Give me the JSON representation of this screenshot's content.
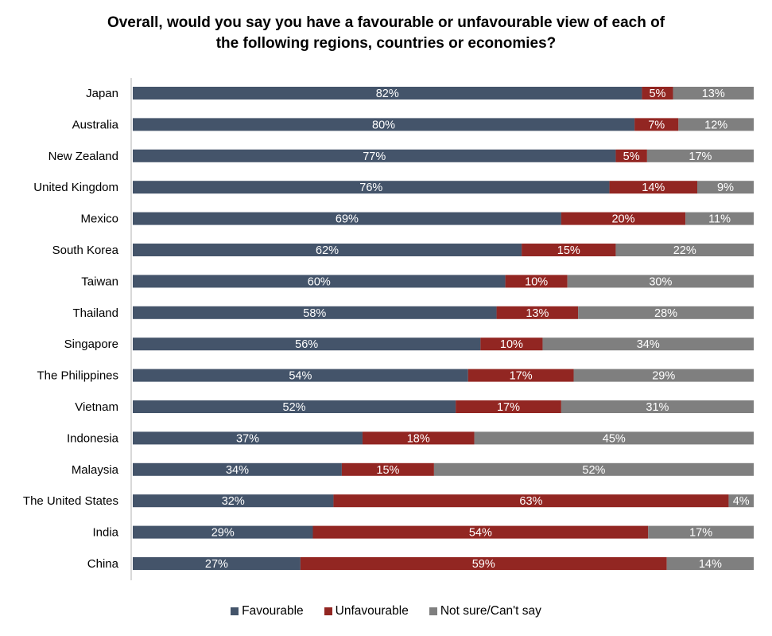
{
  "chart_data": {
    "type": "bar",
    "orientation": "horizontal",
    "stacked": "100%",
    "title_lines": [
      "Overall, would you say you have a favourable or unfavourable view of each of",
      "the following regions, countries or economies?"
    ],
    "title": "Overall, would you say you have a favourable or unfavourable view of each of the following regions, countries or economies?",
    "xlabel": "",
    "ylabel": "",
    "xlim": [
      0,
      100
    ],
    "grid": false,
    "legend_position": "bottom",
    "categories": [
      "Japan",
      "Australia",
      "New Zealand",
      "United Kingdom",
      "Mexico",
      "South Korea",
      "Taiwan",
      "Thailand",
      "Singapore",
      "The Philippines",
      "Vietnam",
      "Indonesia",
      "Malaysia",
      "The United States",
      "India",
      "China"
    ],
    "series": [
      {
        "name": "Favourable",
        "color": "#44546A",
        "values": [
          82,
          80,
          77,
          76,
          69,
          62,
          60,
          58,
          56,
          54,
          52,
          37,
          34,
          32,
          29,
          27
        ]
      },
      {
        "name": "Unfavourable",
        "color": "#922622",
        "values": [
          5,
          7,
          5,
          14,
          20,
          15,
          10,
          13,
          10,
          17,
          17,
          18,
          15,
          63,
          54,
          59
        ]
      },
      {
        "name": "Not sure/Can't say",
        "color": "#7F7F7F",
        "values": [
          13,
          12,
          17,
          9,
          11,
          22,
          30,
          28,
          34,
          29,
          31,
          45,
          52,
          4,
          17,
          14
        ]
      }
    ],
    "value_suffix": "%"
  },
  "legend": {
    "items": [
      {
        "label": "Favourable",
        "color": "#44546A"
      },
      {
        "label": "Unfavourable",
        "color": "#922622"
      },
      {
        "label": "Not sure/Can't say",
        "color": "#7F7F7F"
      }
    ]
  }
}
